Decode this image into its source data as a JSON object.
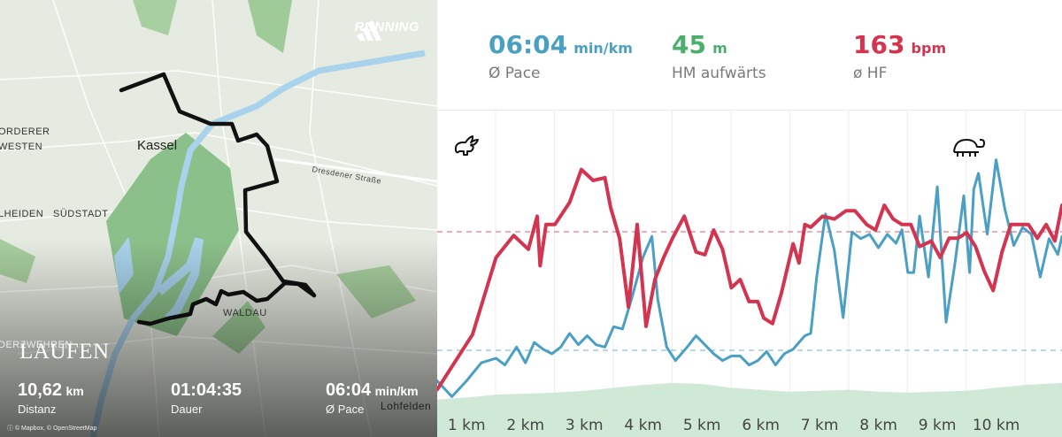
{
  "map": {
    "brand": "RUNNING",
    "activity_title": "LAUFEN",
    "place_labels": {
      "vorderer": "ORDERER",
      "westen": "WESTEN",
      "kassel": "Kassel",
      "heiden": "LHEIDEN",
      "suedstadt": "SÜDSTADT",
      "dresdener": "Dresdener Straße",
      "waldau": "WALDAU",
      "oberzwehren": "DERZWEHREN",
      "lohfelden": "Lohfelden"
    },
    "attribution": "© Mapbox, © OpenStreetMap",
    "stats": [
      {
        "value": "10,62",
        "unit": "km",
        "label": "Distanz"
      },
      {
        "value": "01:04:35",
        "unit": "",
        "label": "Dauer"
      },
      {
        "value": "06:04",
        "unit": "min/km",
        "label": "Ø Pace"
      }
    ],
    "colors": {
      "route": "#111111",
      "water": "#a9d3ec",
      "park": "#8cc08a",
      "land": "#e9eee4"
    }
  },
  "metrics": [
    {
      "value": "06:04",
      "unit": "min/km",
      "label": "Ø Pace",
      "color": "#4a9fc4"
    },
    {
      "value": "45",
      "unit": "m",
      "label": "HM aufwärts",
      "color": "#4cae6c"
    },
    {
      "value": "163",
      "unit": "bpm",
      "label": "ø HF",
      "color": "#d3344f"
    }
  ],
  "chart_data": {
    "type": "line",
    "x_unit": "km",
    "categories": [
      "1 km",
      "2 km",
      "3 km",
      "4 km",
      "5 km",
      "6 km",
      "7 km",
      "8 km",
      "9 km",
      "10 km"
    ],
    "xlim": [
      0,
      10.62
    ],
    "icons": {
      "fast": "rabbit-icon",
      "slow": "turtle-icon"
    },
    "grid": "vertical lines at each km",
    "series": [
      {
        "name": "ø HF",
        "color": "#d3344f",
        "x": [
          0,
          0.6,
          1.0,
          1.3,
          1.55,
          1.7,
          1.75,
          1.85,
          2.0,
          2.25,
          2.45,
          2.65,
          2.85,
          2.95,
          3.1,
          3.25,
          3.4,
          3.55,
          3.7,
          3.85,
          4.0,
          4.2,
          4.4,
          4.55,
          4.7,
          4.85,
          5.0,
          5.15,
          5.3,
          5.45,
          5.55,
          5.7,
          5.85,
          5.95,
          6.05,
          6.15,
          6.25,
          6.35,
          6.55,
          6.75,
          6.95,
          7.1,
          7.3,
          7.45,
          7.6,
          7.75,
          7.9,
          8.05,
          8.2,
          8.4,
          8.55,
          8.7,
          8.85,
          9.0,
          9.15,
          9.3,
          9.45,
          9.6,
          9.75,
          9.9,
          10.05,
          10.2,
          10.35,
          10.5,
          10.62
        ],
        "y": [
          120,
          140,
          168,
          176,
          171,
          183,
          165,
          180,
          180,
          188,
          200,
          196,
          197,
          186,
          175,
          150,
          180,
          143,
          160,
          168,
          175,
          183,
          170,
          169,
          178,
          171,
          157,
          160,
          152,
          152,
          146,
          144,
          155,
          164,
          173,
          166,
          180,
          179,
          183,
          182,
          185,
          185,
          180,
          178,
          187,
          182,
          180,
          180,
          172,
          174,
          168,
          175,
          175,
          177,
          172,
          163,
          156,
          170,
          180,
          180,
          180,
          175,
          180,
          174,
          187
        ]
      },
      {
        "name": "Ø Pace",
        "color": "#4a9fc4",
        "x": [
          0,
          0.25,
          0.5,
          0.75,
          1.0,
          1.15,
          1.35,
          1.5,
          1.65,
          1.8,
          1.95,
          2.1,
          2.25,
          2.4,
          2.55,
          2.7,
          2.85,
          3.0,
          3.15,
          3.3,
          3.5,
          3.65,
          3.75,
          3.9,
          4.05,
          4.25,
          4.4,
          4.55,
          4.7,
          4.85,
          5.0,
          5.15,
          5.3,
          5.45,
          5.6,
          5.75,
          5.9,
          6.05,
          6.15,
          6.25,
          6.35,
          6.45,
          6.6,
          6.75,
          6.9,
          7.05,
          7.2,
          7.35,
          7.5,
          7.65,
          7.8,
          7.9,
          8.0,
          8.1,
          8.2,
          8.35,
          8.5,
          8.65,
          8.8,
          8.95,
          9.05,
          9.12,
          9.2,
          9.35,
          9.5,
          9.65,
          9.8,
          9.95,
          10.1,
          10.25,
          10.4,
          10.55,
          10.62
        ],
        "y": [
          0.5,
          0.15,
          0.5,
          0.9,
          1.0,
          0.85,
          1.25,
          0.9,
          1.35,
          1.2,
          1.1,
          1.25,
          1.55,
          1.3,
          1.5,
          1.3,
          1.25,
          1.7,
          1.65,
          2.3,
          3.25,
          3.7,
          2.3,
          1.25,
          0.95,
          1.25,
          1.5,
          1.3,
          1.1,
          0.95,
          1.05,
          1.05,
          0.85,
          0.95,
          1.15,
          0.85,
          1.1,
          1.2,
          1.35,
          1.5,
          1.55,
          2.8,
          4.2,
          3.4,
          1.9,
          3.8,
          3.65,
          3.75,
          3.45,
          3.75,
          3.55,
          3.85,
          2.9,
          2.9,
          4.15,
          2.8,
          4.8,
          1.8,
          3.1,
          4.6,
          2.9,
          4.75,
          5.1,
          3.75,
          5.4,
          4.3,
          3.5,
          3.9,
          3.75,
          2.8,
          3.65,
          3.3,
          3.7
        ]
      },
      {
        "name": "HM aufwärts",
        "color": "#cfe9d6",
        "x": [
          0,
          0.5,
          1.0,
          1.5,
          2.0,
          2.5,
          3.0,
          3.5,
          4.0,
          4.5,
          5.0,
          5.5,
          6.0,
          6.5,
          7.0,
          7.5,
          8.0,
          8.5,
          9.0,
          9.5,
          10.0,
          10.3,
          10.62
        ],
        "y": [
          0.2,
          0.3,
          0.45,
          0.5,
          0.55,
          0.65,
          0.8,
          0.95,
          1.05,
          1.0,
          0.8,
          0.7,
          0.6,
          0.65,
          0.7,
          0.6,
          0.55,
          0.6,
          0.65,
          0.8,
          0.95,
          1.0,
          1.05
        ]
      }
    ]
  }
}
